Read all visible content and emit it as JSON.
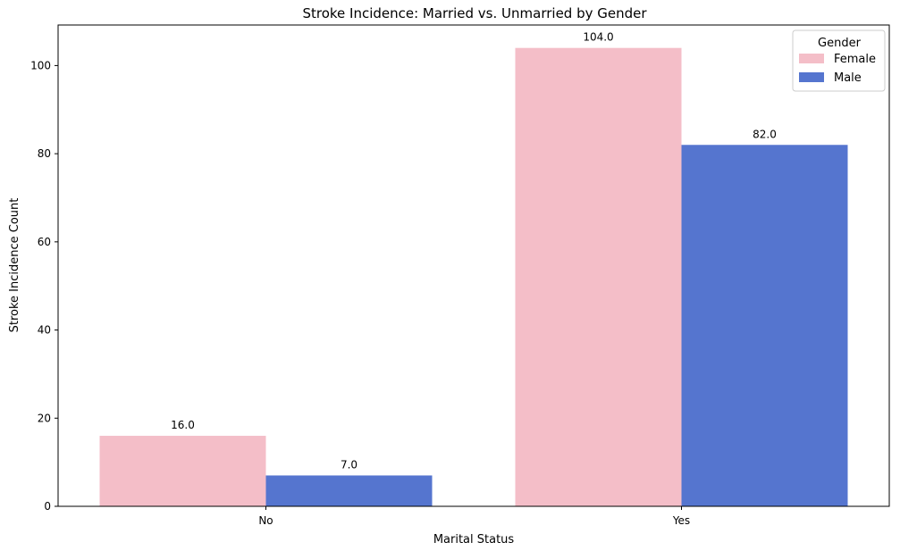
{
  "chart_data": {
    "type": "bar",
    "title": "Stroke Incidence: Married vs. Unmarried by Gender",
    "xlabel": "Marital Status",
    "ylabel": "Stroke Incidence Count",
    "categories": [
      "No",
      "Yes"
    ],
    "series": [
      {
        "name": "Female",
        "color": "#f4bec8",
        "values": [
          16.0,
          104.0
        ],
        "labels": [
          "16.0",
          "104.0"
        ]
      },
      {
        "name": "Male",
        "color": "#5575cf",
        "values": [
          7.0,
          82.0
        ],
        "labels": [
          "7.0",
          "82.0"
        ]
      }
    ],
    "ylim": [
      0,
      109.2
    ],
    "yticks": [
      0,
      20,
      40,
      60,
      80,
      100
    ],
    "ytick_labels": [
      "0",
      "20",
      "40",
      "60",
      "80",
      "100"
    ],
    "grid": false,
    "legend": {
      "title": "Gender",
      "placement": "top-right"
    }
  }
}
